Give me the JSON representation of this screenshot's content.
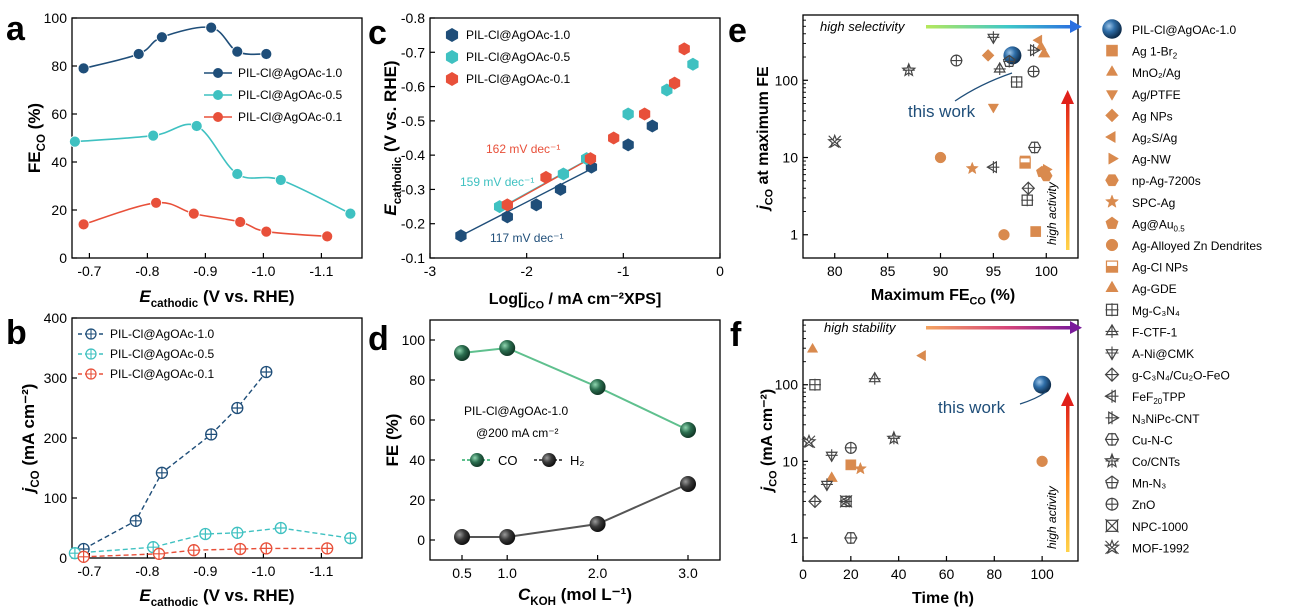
{
  "chart_data": [
    {
      "id": "a",
      "type": "line",
      "panel_label": "a",
      "xlabel_main": "E",
      "xlabel_sub": "cathodic",
      "xlabel_rest": " (V vs. RHE)",
      "ylabel_main": "FE",
      "ylabel_sub": "CO",
      "ylabel_rest": " (%)",
      "xlim": [
        -0.67,
        -1.17
      ],
      "ylim": [
        0,
        100
      ],
      "xticks": [
        -0.7,
        -0.8,
        -0.9,
        -1.0,
        -1.1
      ],
      "xtick_labels": [
        "-0.7",
        "-0.8",
        "-0.9",
        "-1.0",
        "-1.1"
      ],
      "yticks": [
        0,
        20,
        40,
        60,
        80,
        100
      ],
      "ytick_labels": [
        "0",
        "20",
        "40",
        "60",
        "80",
        "100"
      ],
      "legend_position": "right",
      "series": [
        {
          "name": "PIL-Cl@AgOAc-1.0",
          "color": "#1f4e79",
          "x": [
            -0.69,
            -0.785,
            -0.825,
            -0.91,
            -0.955,
            -1.005
          ],
          "y": [
            79,
            85,
            92,
            96,
            86,
            85
          ]
        },
        {
          "name": "PIL-Cl@AgOAc-0.5",
          "color": "#3fc1c1",
          "x": [
            -0.675,
            -0.81,
            -0.885,
            -0.955,
            -1.03,
            -1.15
          ],
          "y": [
            48.5,
            51,
            55,
            35,
            32.5,
            18.5
          ]
        },
        {
          "name": "PIL-Cl@AgOAc-0.1",
          "color": "#e8503a",
          "x": [
            -0.69,
            -0.815,
            -0.88,
            -0.96,
            -1.005,
            -1.11
          ],
          "y": [
            14,
            23,
            18.5,
            15,
            11,
            9
          ]
        }
      ]
    },
    {
      "id": "b",
      "type": "line",
      "panel_label": "b",
      "xlabel_main": "E",
      "xlabel_sub": "cathodic",
      "xlabel_rest": " (V vs. RHE)",
      "ylabel_main": "j",
      "ylabel_sub": "CO",
      "ylabel_rest": " (mA cm⁻²)",
      "xlim": [
        -0.67,
        -1.17
      ],
      "ylim": [
        0,
        400
      ],
      "xticks": [
        -0.7,
        -0.8,
        -0.9,
        -1.0,
        -1.1
      ],
      "xtick_labels": [
        "-0.7",
        "-0.8",
        "-0.9",
        "-1.0",
        "-1.1"
      ],
      "yticks": [
        0,
        100,
        200,
        300,
        400
      ],
      "ytick_labels": [
        "0",
        "100",
        "200",
        "300",
        "400"
      ],
      "legend_position": "top-left",
      "series": [
        {
          "name": "PIL-Cl@AgOAc-1.0",
          "color": "#1f4e79",
          "x": [
            -0.69,
            -0.78,
            -0.825,
            -0.91,
            -0.955,
            -1.005
          ],
          "y": [
            15,
            62,
            142,
            206,
            250,
            310
          ]
        },
        {
          "name": "PIL-Cl@AgOAc-0.5",
          "color": "#3fc1c1",
          "x": [
            -0.675,
            -0.81,
            -0.9,
            -0.955,
            -1.03,
            -1.15
          ],
          "y": [
            8,
            18,
            40,
            42,
            50,
            33
          ]
        },
        {
          "name": "PIL-Cl@AgOAc-0.1",
          "color": "#e8503a",
          "x": [
            -0.69,
            -0.82,
            -0.88,
            -0.96,
            -1.005,
            -1.11
          ],
          "y": [
            2,
            7,
            13,
            15,
            16,
            16
          ]
        }
      ]
    },
    {
      "id": "c",
      "type": "scatter",
      "panel_label": "c",
      "xlabel_main": "Log[j",
      "xlabel_sub": "CO",
      "xlabel_rest": " / mA cm⁻²XPS]",
      "ylabel_main": "E",
      "ylabel_sub": "cathodic",
      "ylabel_rest": " (V vs. RHE)",
      "xlim": [
        -3,
        0
      ],
      "ylim": [
        -0.1,
        -0.8
      ],
      "xticks": [
        -3,
        -2,
        -1,
        0
      ],
      "xtick_labels": [
        "-3",
        "-2",
        "-1",
        "0"
      ],
      "yticks": [
        -0.1,
        -0.2,
        -0.3,
        -0.4,
        -0.5,
        -0.6,
        -0.7,
        -0.8
      ],
      "ytick_labels": [
        "-0.1",
        "-0.2",
        "-0.3",
        "-0.4",
        "-0.5",
        "-0.6",
        "-0.7",
        "-0.8"
      ],
      "legend_position": "top-left",
      "series": [
        {
          "name": "PIL-Cl@AgOAc-1.0",
          "color": "#1f4e79",
          "x": [
            -2.68,
            -2.2,
            -1.9,
            -1.65,
            -1.33,
            -0.95,
            -0.7
          ],
          "y": [
            -0.165,
            -0.22,
            -0.255,
            -0.3,
            -0.365,
            -0.43,
            -0.485
          ]
        },
        {
          "name": "PIL-Cl@AgOAc-0.5",
          "color": "#3fc1c1",
          "x": [
            -2.28,
            -1.62,
            -1.38,
            -0.95,
            -0.55,
            -0.28
          ],
          "y": [
            -0.25,
            -0.345,
            -0.39,
            -0.52,
            -0.59,
            -0.665
          ]
        },
        {
          "name": "PIL-Cl@AgOAc-0.1",
          "color": "#e8503a",
          "x": [
            -2.2,
            -1.8,
            -1.34,
            -1.1,
            -0.78,
            -0.47,
            -0.37
          ],
          "y": [
            -0.255,
            -0.335,
            -0.39,
            -0.45,
            -0.52,
            -0.61,
            -0.71
          ]
        }
      ],
      "fits": [
        {
          "label": "117 mV dec⁻¹",
          "color": "#1f4e79",
          "x": [
            -2.68,
            -1.33
          ],
          "y": [
            -0.165,
            -0.36
          ]
        },
        {
          "label": "159 mV dec⁻¹",
          "color": "#3fc1c1",
          "x": [
            -2.28,
            -1.38
          ],
          "y": [
            -0.245,
            -0.385
          ]
        },
        {
          "label": "162 mV dec⁻¹",
          "color": "#e8503a",
          "x": [
            -2.2,
            -1.34
          ],
          "y": [
            -0.255,
            -0.39
          ]
        }
      ]
    },
    {
      "id": "d",
      "type": "line",
      "panel_label": "d",
      "xlabel_main": "C",
      "xlabel_sub": "KOH",
      "xlabel_rest": " (mol L⁻¹)",
      "ylabel_main": "FE (%)",
      "ylabel_sub": "",
      "ylabel_rest": "",
      "categories": [
        "0.5",
        "1.0",
        "2.0",
        "3.0"
      ],
      "ylim": [
        -10,
        110
      ],
      "yticks": [
        0,
        20,
        40,
        60,
        80,
        100
      ],
      "ytick_labels": [
        "0",
        "20",
        "40",
        "60",
        "80",
        "100"
      ],
      "annotation_lines": [
        "PIL-Cl@AgOAc-1.0",
        "@200 mA cm⁻²"
      ],
      "series": [
        {
          "name": "CO",
          "color": "#2b6e4f",
          "line_color": "#5fc08e",
          "values": [
            93.5,
            96,
            76.5,
            55
          ]
        },
        {
          "name": "H₂",
          "color": "#3a3a3a",
          "line_color": "#555555",
          "values": [
            1.5,
            1.5,
            8,
            28
          ]
        }
      ]
    },
    {
      "id": "e",
      "type": "scatter",
      "panel_label": "e",
      "log_y": true,
      "xlabel_main": "Maximum FE",
      "xlabel_sub": "CO",
      "xlabel_rest": " (%)",
      "ylabel_main": "j",
      "ylabel_sub": "CO",
      "ylabel_rest": " at maximum FE",
      "ylabel_sub2": "CO",
      "ylabel_rest2": " (mA cm⁻²)",
      "xlim": [
        77,
        103
      ],
      "ylim": [
        0.5,
        700
      ],
      "xticks": [
        80,
        85,
        90,
        95,
        100
      ],
      "xtick_labels": [
        "80",
        "85",
        "90",
        "95",
        "100"
      ],
      "yticks": [
        1,
        10,
        100
      ],
      "ytick_labels": [
        "1",
        "10",
        "100"
      ],
      "annotations": {
        "top": "high selectivity",
        "side": "high activity",
        "highlight": "this work"
      }
    },
    {
      "id": "f",
      "type": "scatter",
      "panel_label": "f",
      "log_y": true,
      "xlabel_main": "Time (h)",
      "xlabel_sub": "",
      "xlabel_rest": "",
      "ylabel_main": "j",
      "ylabel_sub": "CO",
      "ylabel_rest": " (mA cm⁻²)",
      "xlim": [
        0,
        115
      ],
      "ylim": [
        0.5,
        700
      ],
      "xticks": [
        0,
        20,
        40,
        60,
        80,
        100
      ],
      "xtick_labels": [
        "0",
        "20",
        "40",
        "60",
        "80",
        "100"
      ],
      "yticks": [
        1,
        10,
        100
      ],
      "ytick_labels": [
        "1",
        "10",
        "100"
      ],
      "annotations": {
        "top": "high stability",
        "side": "high activity",
        "highlight": "this work"
      }
    }
  ],
  "ref_legend": [
    {
      "name": "PIL-Cl@AgOAc-1.0",
      "sub": "",
      "shape": "sphere",
      "color": "#1f4e79"
    },
    {
      "name": "Ag 1-Br",
      "sub": "2",
      "shape": "square",
      "color": "#d98a4e"
    },
    {
      "name": "MnO₂/Ag",
      "sub": "",
      "shape": "triangle-up",
      "color": "#d98a4e"
    },
    {
      "name": "Ag/PTFE",
      "sub": "",
      "shape": "triangle-down",
      "color": "#d98a4e"
    },
    {
      "name": "Ag NPs",
      "sub": "",
      "shape": "diamond",
      "color": "#d98a4e"
    },
    {
      "name": "Ag₂S/Ag",
      "sub": "",
      "shape": "triangle-left",
      "color": "#d98a4e"
    },
    {
      "name": "Ag-NW",
      "sub": "",
      "shape": "triangle-right",
      "color": "#d98a4e"
    },
    {
      "name": "np-Ag-7200s",
      "sub": "",
      "shape": "hexagon",
      "color": "#d98a4e"
    },
    {
      "name": "SPC-Ag",
      "sub": "",
      "shape": "star",
      "color": "#d98a4e"
    },
    {
      "name": "Ag@Au",
      "sub": "0.5",
      "shape": "pentagon",
      "color": "#d98a4e"
    },
    {
      "name": "Ag-Alloyed Zn Dendrites",
      "sub": "",
      "shape": "circle",
      "color": "#d98a4e"
    },
    {
      "name": "Ag-Cl NPs",
      "sub": "",
      "shape": "half-square",
      "color": "#d98a4e"
    },
    {
      "name": "Ag-GDE",
      "sub": "",
      "shape": "half-triangle",
      "color": "#d98a4e"
    },
    {
      "name": "Mg-C₃N₄",
      "sub": "",
      "shape": "o-square",
      "color": "#444444"
    },
    {
      "name": "F-CTF-1",
      "sub": "",
      "shape": "o-triangle-up",
      "color": "#444444"
    },
    {
      "name": "A-Ni@CMK",
      "sub": "",
      "shape": "o-triangle-down",
      "color": "#444444"
    },
    {
      "name": "g-C₃N₄/Cu₂O-FeO",
      "sub": "",
      "shape": "o-diamond",
      "color": "#444444"
    },
    {
      "name": "FeF",
      "sub": "20",
      "name2": "TPP",
      "shape": "o-triangle-left",
      "color": "#444444"
    },
    {
      "name": "N₃NiPc-CNT",
      "sub": "",
      "shape": "o-triangle-right",
      "color": "#444444"
    },
    {
      "name": "Cu-N-C",
      "sub": "",
      "shape": "o-hexagon",
      "color": "#444444"
    },
    {
      "name": "Co/CNTs",
      "sub": "",
      "shape": "o-star",
      "color": "#444444"
    },
    {
      "name": "Mn-N₃",
      "sub": "",
      "shape": "o-pentagon",
      "color": "#444444"
    },
    {
      "name": "ZnO",
      "sub": "",
      "shape": "o-circle",
      "color": "#444444"
    },
    {
      "name": "NPC-1000",
      "sub": "",
      "shape": "x-square",
      "color": "#444444"
    },
    {
      "name": "MOF-1992",
      "sub": "",
      "shape": "x-star",
      "color": "#444444"
    }
  ],
  "e_points": [
    {
      "ref": 0,
      "x": 96.8,
      "y": 210
    },
    {
      "ref": 1,
      "x": 98,
      "y": 9
    },
    {
      "ref": 1,
      "x": 99,
      "y": 1.1
    },
    {
      "ref": 2,
      "x": 99.5,
      "y": 270
    },
    {
      "ref": 3,
      "x": 95,
      "y": 45
    },
    {
      "ref": 4,
      "x": 94.5,
      "y": 210
    },
    {
      "ref": 5,
      "x": 99.3,
      "y": 330
    },
    {
      "ref": 6,
      "x": 100,
      "y": 7
    },
    {
      "ref": 7,
      "x": 100,
      "y": 5.8
    },
    {
      "ref": 8,
      "x": 93,
      "y": 7.2
    },
    {
      "ref": 9,
      "x": 99.6,
      "y": 6.5
    },
    {
      "ref": 10,
      "x": 90,
      "y": 10
    },
    {
      "ref": 10,
      "x": 96,
      "y": 1
    },
    {
      "ref": 11,
      "x": 98,
      "y": 8.5
    },
    {
      "ref": 12,
      "x": 99.8,
      "y": 220
    },
    {
      "ref": 13,
      "x": 97.2,
      "y": 95
    },
    {
      "ref": 13,
      "x": 98.2,
      "y": 2.8
    },
    {
      "ref": 14,
      "x": 95.6,
      "y": 140
    },
    {
      "ref": 15,
      "x": 95,
      "y": 360
    },
    {
      "ref": 16,
      "x": 98.3,
      "y": 4
    },
    {
      "ref": 17,
      "x": 95,
      "y": 7.5
    },
    {
      "ref": 18,
      "x": 98.8,
      "y": 245
    },
    {
      "ref": 19,
      "x": 98.9,
      "y": 13.5
    },
    {
      "ref": 20,
      "x": 87,
      "y": 135
    },
    {
      "ref": 21,
      "x": 96.5,
      "y": 175
    },
    {
      "ref": 22,
      "x": 91.5,
      "y": 180
    },
    {
      "ref": 22,
      "x": 98.8,
      "y": 130
    },
    {
      "ref": 24,
      "x": 80,
      "y": 16
    }
  ],
  "f_points": [
    {
      "ref": 0,
      "x": 100,
      "y": 100
    },
    {
      "ref": 1,
      "x": 20,
      "y": 9
    },
    {
      "ref": 2,
      "x": 4,
      "y": 290
    },
    {
      "ref": 5,
      "x": 50,
      "y": 240
    },
    {
      "ref": 8,
      "x": 24,
      "y": 8
    },
    {
      "ref": 10,
      "x": 100,
      "y": 10
    },
    {
      "ref": 12,
      "x": 12,
      "y": 6
    },
    {
      "ref": 13,
      "x": 5,
      "y": 100
    },
    {
      "ref": 14,
      "x": 30,
      "y": 120
    },
    {
      "ref": 15,
      "x": 12,
      "y": 12
    },
    {
      "ref": 15,
      "x": 10,
      "y": 5
    },
    {
      "ref": 16,
      "x": 5,
      "y": 3
    },
    {
      "ref": 17,
      "x": 18,
      "y": 3
    },
    {
      "ref": 19,
      "x": 20,
      "y": 1
    },
    {
      "ref": 20,
      "x": 38,
      "y": 20
    },
    {
      "ref": 22,
      "x": 20,
      "y": 15
    },
    {
      "ref": 23,
      "x": 18,
      "y": 3
    },
    {
      "ref": 24,
      "x": 2.5,
      "y": 18
    }
  ]
}
